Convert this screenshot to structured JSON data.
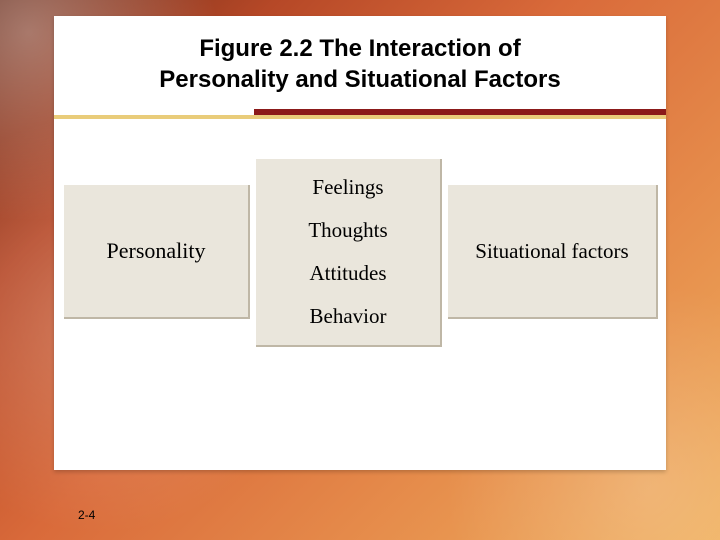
{
  "slide": {
    "title_line1": "Figure 2.2 The Interaction of",
    "title_line2": "Personality and Situational Factors",
    "page_number": "2-4"
  },
  "diagram": {
    "left_label": "Personality",
    "center_items": [
      "Feelings",
      "Thoughts",
      "Attitudes",
      "Behavior"
    ],
    "right_label": "Situational factors",
    "box_bg": "#eae6dc",
    "box_border": "#bfb7a6"
  },
  "style": {
    "rule_dark_color": "#8b1a1a",
    "rule_light_color": "#e9cc7a",
    "panel_bg": "#ffffff",
    "title_fontsize": 24,
    "diagram_fontsize": 21,
    "page_fontsize": 12,
    "gradient_stops": [
      "#6a2a18",
      "#b64827",
      "#d96a3a",
      "#e58a4a",
      "#f0b05e"
    ]
  }
}
